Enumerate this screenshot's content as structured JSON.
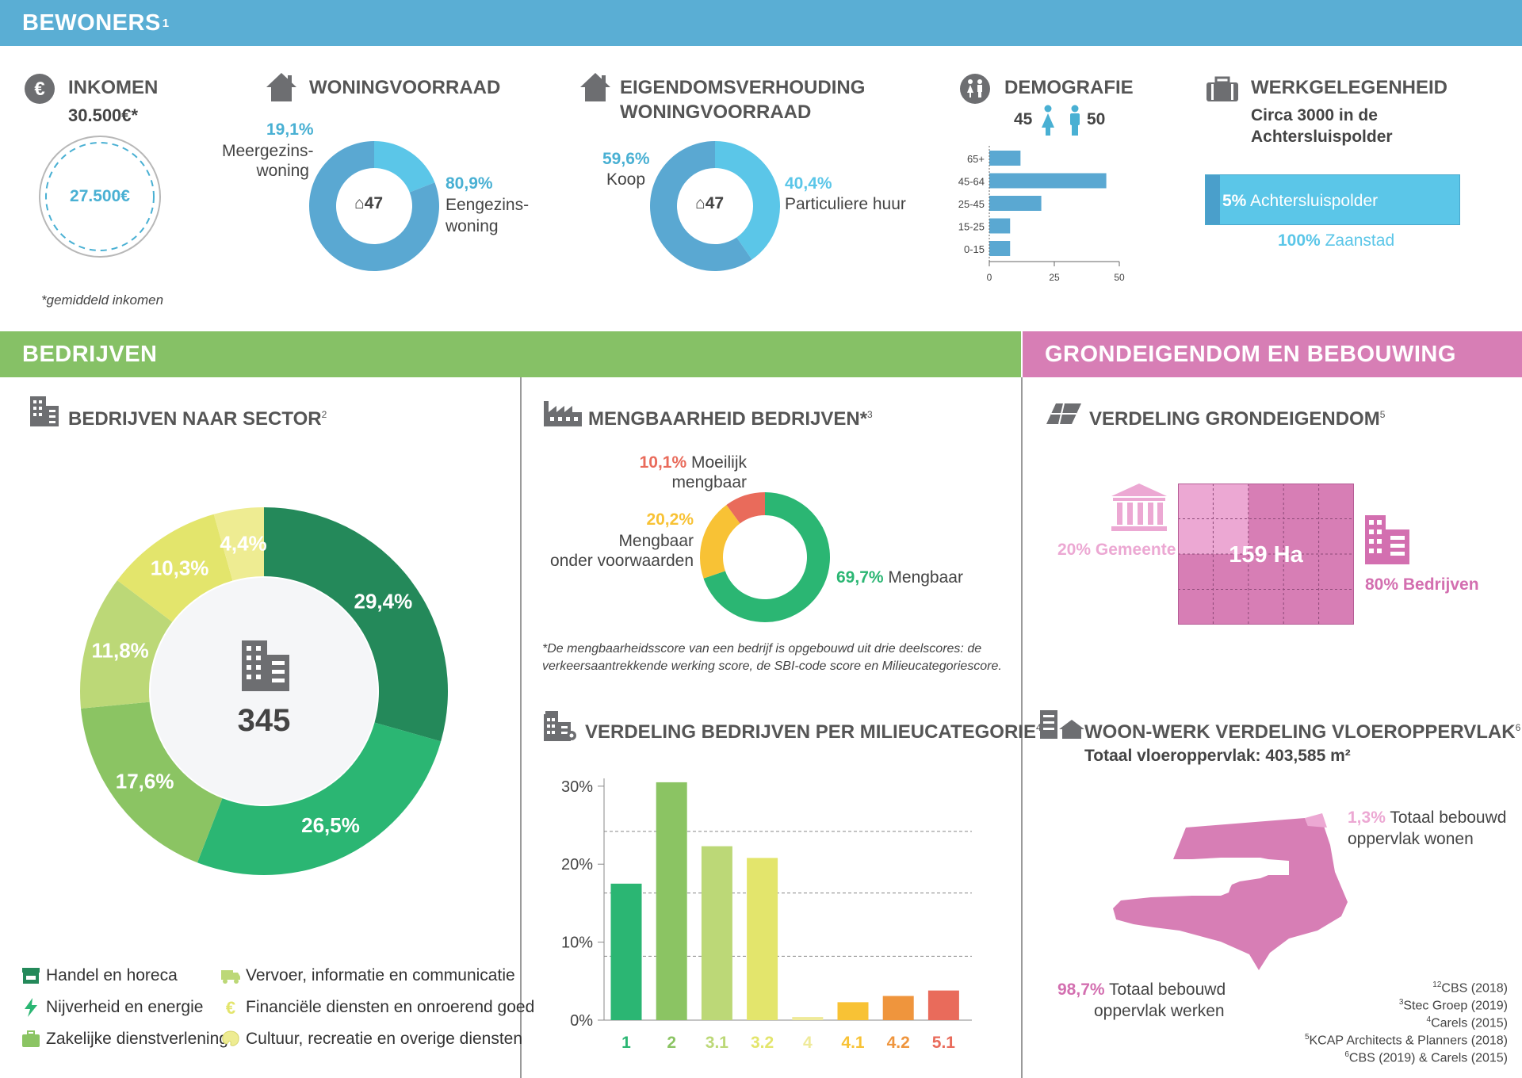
{
  "bewoners": {
    "band_title": "BEWONERS",
    "band_sup": "1",
    "inkomen": {
      "title": "INKOMEN",
      "value": "30.500€*",
      "circle_value": "27.500€",
      "footnote": "*gemiddeld inkomen",
      "icon": "euro-icon"
    },
    "woningvoorraad": {
      "title": "WONINGVOORRAAD",
      "pct_meer": "19,1%",
      "label_meer_1": "Meergezins-",
      "label_meer_2": "woning",
      "pct_een": "80,9%",
      "label_een_1": "Eengezins-",
      "label_een_2": "woning",
      "center": "47",
      "colors": [
        "#5bc6e8",
        "#5aa8d2"
      ]
    },
    "eigendom": {
      "title_1": "EIGENDOMSVERHOUDING",
      "title_2": "WONINGVOORRAAD",
      "pct_koop": "59,6%",
      "label_koop": "Koop",
      "pct_huur": "40,4%",
      "label_huur": "Particuliere huur",
      "center": "47",
      "colors": [
        "#5aa8d2",
        "#5bc6e8"
      ]
    },
    "demografie": {
      "title": "DEMOGRAFIE",
      "female": "45",
      "male": "50",
      "chart_data": {
        "type": "bar",
        "orientation": "horizontal",
        "categories": [
          "65+",
          "45-64",
          "25-45",
          "15-25",
          "0-15"
        ],
        "values": [
          12,
          45,
          20,
          8,
          8
        ],
        "xlim": [
          0,
          50
        ],
        "xticks": [
          "0",
          "25",
          "50"
        ],
        "color": "#5aa8d2"
      }
    },
    "werkgelegenheid": {
      "title": "WERKGELEGENHEID",
      "subtitle": "Circa 3000 in de Achtersluispolder",
      "bar_pct": "5%",
      "bar_label": "Achtersluispolder",
      "bar_fraction": 0.05,
      "total_pct": "100%",
      "total_label": "Zaanstad"
    }
  },
  "bedrijven": {
    "band_title": "BEDRIJVEN",
    "sector": {
      "title": "BEDRIJVEN NAAR SECTOR",
      "sup": "2",
      "total": "345",
      "chart_data": {
        "type": "pie",
        "slices": [
          {
            "label": "29,4%",
            "value": 29.4,
            "color": "#24895a",
            "name": "Handel en horeca"
          },
          {
            "label": "26,5%",
            "value": 26.5,
            "color": "#2bb673",
            "name": "Nijverheid en energie"
          },
          {
            "label": "17,6%",
            "value": 17.6,
            "color": "#8bc463",
            "name": "Zakelijke dienstverlening"
          },
          {
            "label": "11,8%",
            "value": 11.8,
            "color": "#bcd877",
            "name": "Vervoer, informatie en communicatie"
          },
          {
            "label": "10,3%",
            "value": 10.3,
            "color": "#e3e56c",
            "name": "Financiële diensten en onroerend goed"
          },
          {
            "label": "4,4%",
            "value": 4.4,
            "color": "#eeec92",
            "name": "Cultuur, recreatie en overige diensten"
          }
        ]
      },
      "legend": [
        {
          "label": "Handel en horeca",
          "color": "#24895a"
        },
        {
          "label": "Nijverheid en energie",
          "color": "#2bb673"
        },
        {
          "label": "Zakelijke dienstverlening",
          "color": "#8bc463"
        },
        {
          "label": "Vervoer, informatie en communicatie",
          "color": "#bcd877"
        },
        {
          "label": "Financiële diensten en onroerend goed",
          "color": "#e3e56c"
        },
        {
          "label": "Cultuur, recreatie en overige diensten",
          "color": "#eeec92"
        }
      ]
    },
    "mengbaarheid": {
      "title": "MENGBAARHEID BEDRIJVEN*",
      "sup": "3",
      "moeilijk_pct": "10,1%",
      "moeilijk_1": "Moeilijk",
      "moeilijk_2": "mengbaar",
      "voorw_pct": "20,2%",
      "voorw_1": "Mengbaar",
      "voorw_2": "onder voorwaarden",
      "meng_pct": "69,7%",
      "meng_label": "Mengbaar",
      "note_1": "*De mengbaarheidsscore van een bedrijf is opgebouwd uit drie deelscores: de",
      "note_2": "verkeersaantrekkende werking score, de SBI-code score en Milieucategoriescore.",
      "chart_data": {
        "type": "pie",
        "values": [
          69.7,
          20.2,
          10.1
        ],
        "colors": [
          "#2bb673",
          "#f8c235",
          "#e96b5b"
        ]
      }
    },
    "milieu": {
      "title": "VERDELING BEDRIJVEN PER MILIEUCATEGORIE",
      "sup": "4",
      "chart_data": {
        "type": "bar",
        "categories": [
          "1",
          "2",
          "3.1",
          "3.2",
          "4",
          "4.1",
          "4.2",
          "5.1"
        ],
        "values": [
          17.5,
          30.5,
          22.3,
          20.8,
          0.4,
          2.3,
          3.1,
          3.8
        ],
        "colors": [
          "#2bb673",
          "#8bc463",
          "#bcd877",
          "#e3e56c",
          "#efea9a",
          "#f8c235",
          "#ef953d",
          "#e96b5b"
        ],
        "ylim": [
          0,
          31
        ],
        "yticks": [
          "0%",
          "10%",
          "20%",
          "30%"
        ],
        "ytick_values": [
          0,
          10,
          20,
          30
        ],
        "gridlines": [
          8.2,
          16.3,
          24.2
        ]
      }
    }
  },
  "grond": {
    "band_title": "GRONDEIGENDOM EN BEBOUWING",
    "verdeling": {
      "title": "VERDELING GRONDEIGENDOM",
      "sup": "5",
      "gemeente": "20% Gemeente",
      "bedrijven": "80% Bedrijven",
      "center": "159 Ha",
      "gemeente_fraction": 0.2
    },
    "woonwerk": {
      "title": "WOON-WERK VERDELING VLOEROPPERVLAK",
      "sup": "6",
      "subtitle": "Totaal vloeroppervlak: 403,585 m²",
      "wonen_pct": "1,3%",
      "wonen_1": "Totaal bebouwd",
      "wonen_2": "oppervlak wonen",
      "werken_pct": "98,7%",
      "werken_1": "Totaal bebouwd",
      "werken_2": "oppervlak werken"
    },
    "sources": [
      {
        "sup": "12",
        "text": "CBS (2018)"
      },
      {
        "sup": "3",
        "text": "Stec Groep (2019)"
      },
      {
        "sup": "4",
        "text": "Carels (2015)"
      },
      {
        "sup": "5",
        "text": "KCAP Architects & Planners (2018)"
      },
      {
        "sup": "6",
        "text": "CBS (2019) & Carels (2015)"
      }
    ]
  },
  "colors": {
    "blue_band": "#5aaed4",
    "green_band": "#86c166",
    "pink_band": "#d77eb5",
    "pink_dark": "#d36fb0",
    "pink_light": "#eca8d3"
  }
}
